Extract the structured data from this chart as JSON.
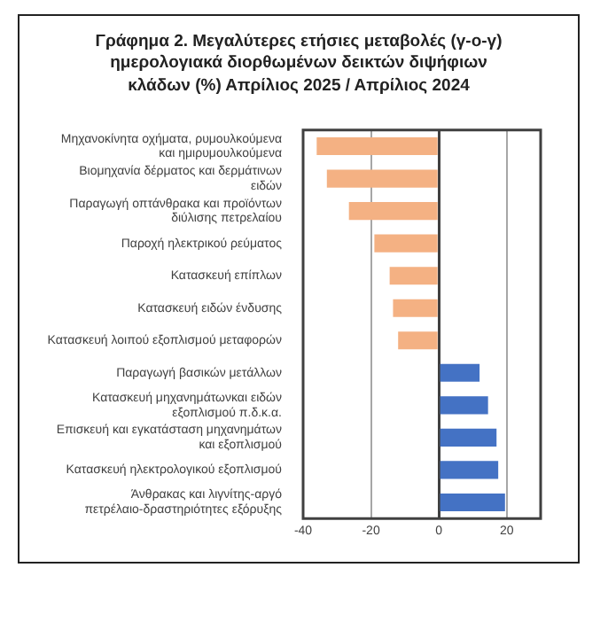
{
  "chart_data": {
    "type": "bar",
    "orientation": "horizontal",
    "title": "Γράφημα 2. Μεγαλύτερες ετήσιες μεταβολές (γ-ο-γ) ημερολογιακά διορθωμένων δεικτών διψήφιων κλάδων (%)  Απρίλιος 2025 / Απρίλιος  2024",
    "categories": [
      "Μηχανοκίνητα οχήματα, ρυμουλκούμενα και ημιρυμουλκούμενα",
      "Βιομηχανία δέρματος και δερμάτινων ειδών",
      "Παραγωγή οπτάνθρακα και προϊόντων διύλισης πετρελαίου",
      "Παροχή ηλεκτρικού ρεύματος",
      "Κατασκευή επίπλων",
      "Κατασκευή ειδών ένδυσης",
      "Κατασκευή λοιπού εξοπλισμού μεταφορών",
      "Παραγωγή βασικών μετάλλων",
      "Κατασκευή μηχανημάτωνκαι ειδών εξοπλισμού π.δ.κ.α.",
      "Επισκευή και εγκατάσταση μηχανημάτων και εξοπλισμού",
      "Κατασκευή ηλεκτρολογικού εξοπλισμού",
      "Άνθρακας και λιγνίτης-αργό πετρέλαιο-δραστηριότητες εξόρυξης"
    ],
    "values": [
      -36,
      -33,
      -26.5,
      -19,
      -14.5,
      -13.5,
      -12,
      12,
      14.5,
      17,
      17.5,
      19.5
    ],
    "colors": [
      "#f4b183",
      "#f4b183",
      "#f4b183",
      "#f4b183",
      "#f4b183",
      "#f4b183",
      "#f4b183",
      "#4472c4",
      "#4472c4",
      "#4472c4",
      "#4472c4",
      "#4472c4"
    ],
    "xlim": [
      -40,
      30
    ],
    "xticks": [
      -40,
      -20,
      0,
      20
    ],
    "grid": "x",
    "legend": false
  }
}
